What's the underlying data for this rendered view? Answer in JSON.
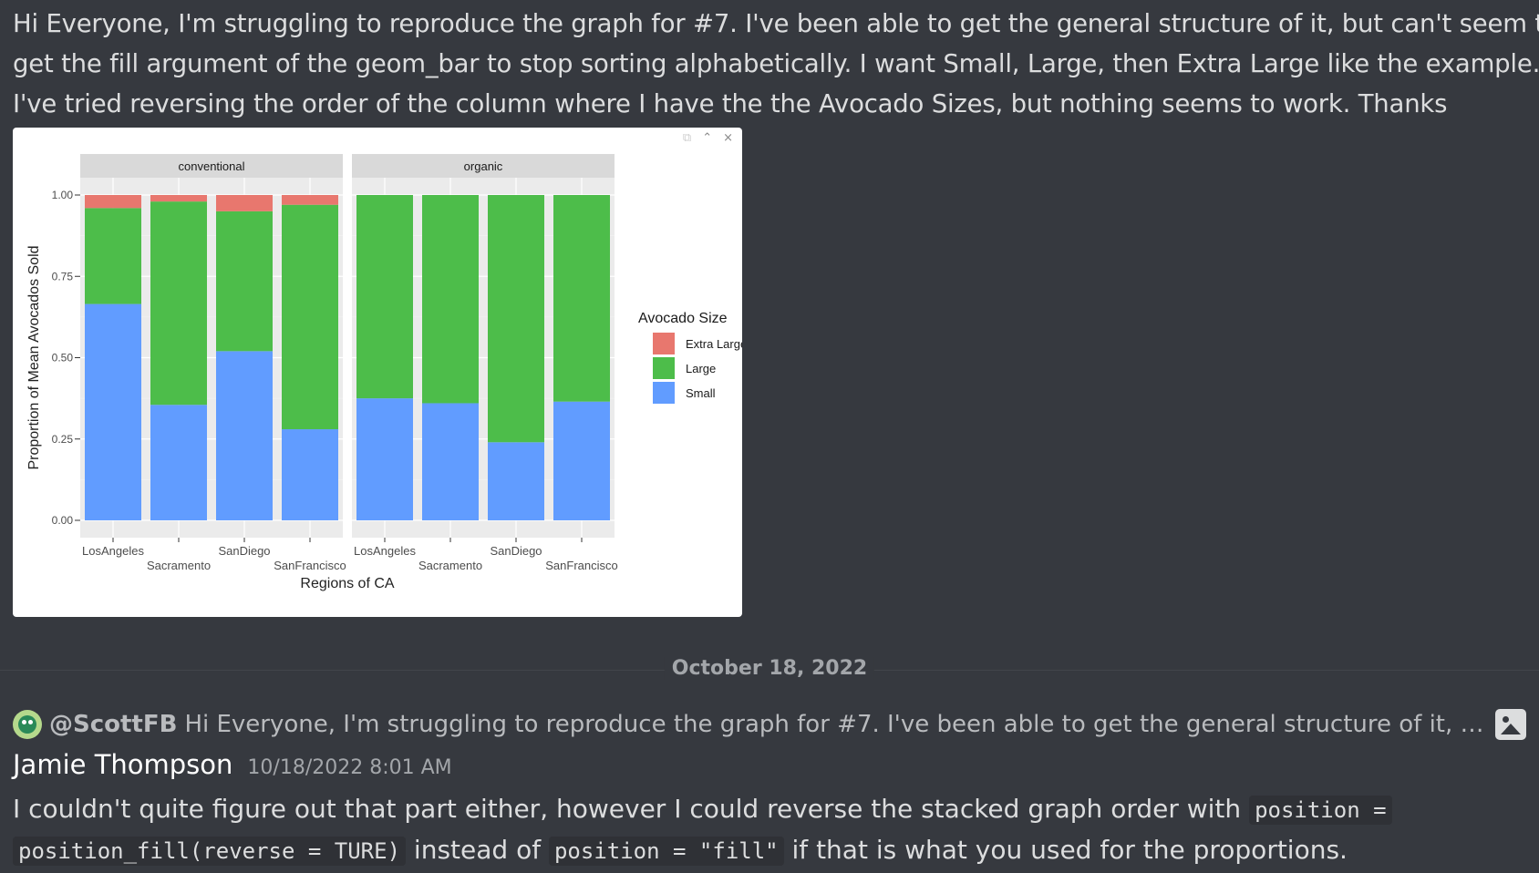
{
  "first_message": {
    "lines": [
      "Hi Everyone, I'm struggling to reproduce the graph for #7. I've been able to get the general structure of it, but can't seem to",
      "get the fill argument of the geom_bar to stop sorting alphabetically. I want Small, Large, then Extra Large like the example.",
      "I've tried reversing the order of the column where I have the the Avocado Sizes, but nothing seems to work. Thanks"
    ],
    "embed_controls": [
      "⧉",
      "⌃",
      "×"
    ]
  },
  "chart_data": {
    "type": "bar",
    "stacked": true,
    "facets": [
      "conventional",
      "organic"
    ],
    "categories": [
      "LosAngeles",
      "Sacramento",
      "SanDiego",
      "SanFrancisco"
    ],
    "series": [
      {
        "name": "Small",
        "color": "#619cff",
        "values": {
          "conventional": [
            0.665,
            0.355,
            0.52,
            0.28
          ],
          "organic": [
            0.375,
            0.36,
            0.24,
            0.365
          ]
        }
      },
      {
        "name": "Large",
        "color": "#4dbd4a",
        "values": {
          "conventional": [
            0.295,
            0.625,
            0.43,
            0.69
          ],
          "organic": [
            0.625,
            0.64,
            0.76,
            0.635
          ]
        }
      },
      {
        "name": "Extra Large",
        "color": "#e8776e",
        "values": {
          "conventional": [
            0.04,
            0.02,
            0.05,
            0.03
          ],
          "organic": [
            0.0,
            0.0,
            0.0,
            0.0
          ]
        }
      }
    ],
    "ylim": [
      0,
      1
    ],
    "yticks": [
      "0.00",
      "0.25",
      "0.50",
      "0.75",
      "1.00"
    ],
    "xlabel": "Regions of CA",
    "ylabel": "Proportion of Mean Avocados Sold",
    "legend_title": "Avocado Size",
    "legend_order": [
      "Extra Large",
      "Large",
      "Small"
    ],
    "legend_position": "right"
  },
  "divider": {
    "date": "October 18, 2022"
  },
  "reply": {
    "mention": "@ScottFB",
    "preview": "Hi Everyone, I'm struggling to reproduce the graph for #7. I've been able to get the general structure of it, but can't seem to ..."
  },
  "second_message": {
    "author": "Jamie Thompson",
    "timestamp": "10/18/2022 8:01 AM",
    "line1_text": "I couldn't quite figure out that part either, however I could reverse the stacked graph order with ",
    "code1_part1": "position =",
    "code1_part2": "position_fill(reverse = TURE)",
    "text_mid": " instead of ",
    "code2": "position = \"fill\"",
    "text_end": " if that is what you used for the proportions."
  }
}
